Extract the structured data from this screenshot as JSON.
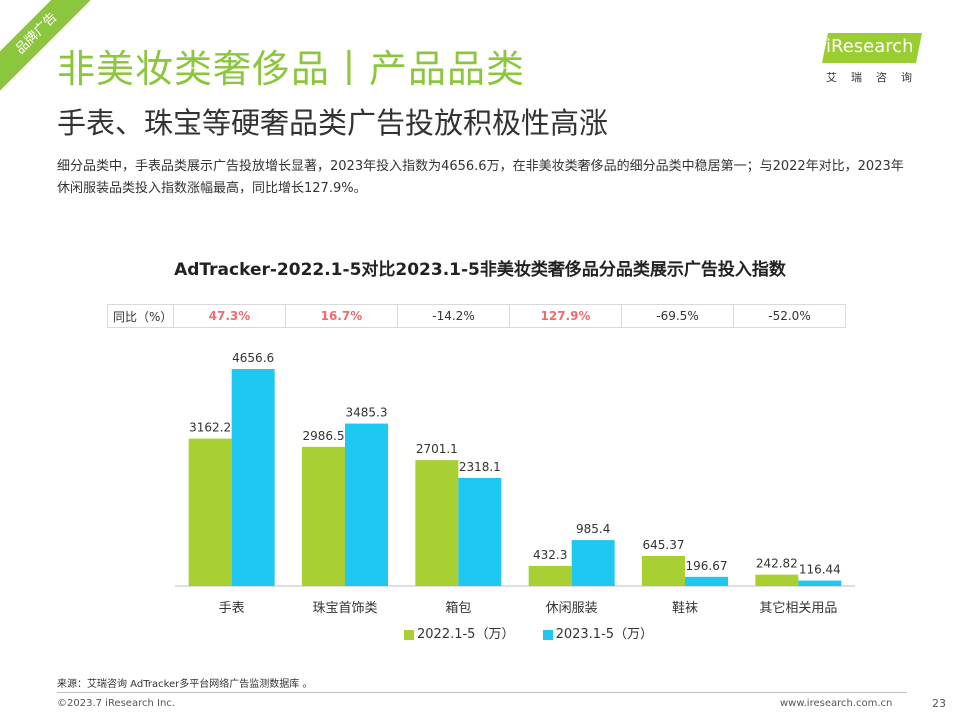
{
  "header": {
    "corner_tag": "品牌广告",
    "title": "非美妆类奢侈品丨产品品类",
    "subtitle": "手表、珠宝等硬奢品类广告投放积极性高涨",
    "description": "细分品类中，手表品类展示广告投放增长显著，2023年投入指数为4656.6万，在非美妆类奢侈品的细分品类中稳居第一；与2022年对比，2023年休闲服装品类投入指数涨幅最高，同比增长127.9%。"
  },
  "logo": {
    "name": "iResearch",
    "sub": "艾瑞咨询"
  },
  "yoy_table": {
    "label": "同比（%）",
    "values": [
      "47.3%",
      "16.7%",
      "-14.2%",
      "127.9%",
      "-69.5%",
      "-52.0%"
    ]
  },
  "chart_data": {
    "type": "bar",
    "title": "AdTracker-2022.1-5对比2023.1-5非美妆类奢侈品分品类展示广告投入指数",
    "categories": [
      "手表",
      "珠宝首饰类",
      "箱包",
      "休闲服装",
      "鞋袜",
      "其它相关用品"
    ],
    "series": [
      {
        "name": "2022.1-5（万）",
        "color": "#a8d032",
        "values": [
          3162.2,
          2986.5,
          2701.1,
          432.3,
          645.37,
          242.82
        ],
        "labels": [
          "3162.2",
          "2986.5",
          "2701.1",
          "432.3",
          "645.37",
          "242.82"
        ]
      },
      {
        "name": "2023.1-5（万）",
        "color": "#1ec8f0",
        "values": [
          4656.6,
          3485.3,
          2318.1,
          985.4,
          196.67,
          116.44
        ],
        "labels": [
          "4656.6",
          "3485.3",
          "2318.1",
          "985.4",
          "196.67",
          "116.44"
        ]
      }
    ],
    "ylim": [
      0,
      5000
    ],
    "legend": "bottom",
    "grid": false
  },
  "footer": {
    "source": "来源：艾瑞咨询 AdTracker多平台网络广告监测数据库 。",
    "copyright": "©2023.7 iResearch Inc.",
    "website": "www.iresearch.com.cn",
    "page": "23"
  }
}
